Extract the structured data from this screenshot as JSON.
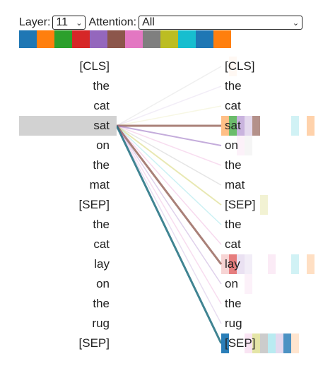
{
  "controls": {
    "layer_label": "Layer:",
    "layer_value": "11",
    "attention_label": "Attention:",
    "attention_value": "All"
  },
  "head_colors": [
    "#1f77b4",
    "#ff7f0e",
    "#2ca02c",
    "#d62728",
    "#9467bd",
    "#8c564b",
    "#e377c2",
    "#7f7f7f",
    "#bcbd22",
    "#17becf",
    "#1f77b4",
    "#ff7f0e"
  ],
  "left_tokens": [
    "[CLS]",
    "the",
    "cat",
    "sat",
    "on",
    "the",
    "mat",
    "[SEP]",
    "the",
    "cat",
    "lay",
    "on",
    "the",
    "rug",
    "[SEP]"
  ],
  "right_tokens": [
    "[CLS]",
    "the",
    "cat",
    "sat",
    "on",
    "the",
    "mat",
    "[SEP]",
    "the",
    "cat",
    "lay",
    "on",
    "the",
    "rug",
    "[SEP]"
  ],
  "selected_left_index": 3,
  "attention_lines": [
    {
      "to": 0,
      "color": "#7f7f7f",
      "opacity": 0.12,
      "width": 1.5
    },
    {
      "to": 1,
      "color": "#9467bd",
      "opacity": 0.12,
      "width": 1.5
    },
    {
      "to": 2,
      "color": "#bcbd22",
      "opacity": 0.12,
      "width": 1.5
    },
    {
      "to": 3,
      "color": "#8c564b",
      "opacity": 0.75,
      "width": 3
    },
    {
      "to": 4,
      "color": "#9467bd",
      "opacity": 0.55,
      "width": 2
    },
    {
      "to": 5,
      "color": "#e377c2",
      "opacity": 0.25,
      "width": 1.5
    },
    {
      "to": 6,
      "color": "#7f7f7f",
      "opacity": 0.2,
      "width": 1.5
    },
    {
      "to": 7,
      "color": "#bcbd22",
      "opacity": 0.35,
      "width": 2
    },
    {
      "to": 8,
      "color": "#17becf",
      "opacity": 0.22,
      "width": 1.5
    },
    {
      "to": 9,
      "color": "#e377c2",
      "opacity": 0.28,
      "width": 1.5
    },
    {
      "to": 10,
      "color": "#8c564b",
      "opacity": 0.75,
      "width": 3
    },
    {
      "to": 11,
      "color": "#9467bd",
      "opacity": 0.3,
      "width": 1.5
    },
    {
      "to": 12,
      "color": "#e377c2",
      "opacity": 0.25,
      "width": 1.5
    },
    {
      "to": 13,
      "color": "#9467bd",
      "opacity": 0.22,
      "width": 1.5
    },
    {
      "to": 14,
      "color": "#1f6f7f",
      "opacity": 0.85,
      "width": 3
    }
  ],
  "heat_cells": [
    {
      "row": 0,
      "head": 1,
      "color": "#ff7f0e",
      "opacity": 0.05
    },
    {
      "row": 3,
      "head": 0,
      "color": "#ff7f0e",
      "opacity": 0.5
    },
    {
      "row": 3,
      "head": 1,
      "color": "#2ca02c",
      "opacity": 0.7
    },
    {
      "row": 3,
      "head": 2,
      "color": "#9467bd",
      "opacity": 0.5
    },
    {
      "row": 3,
      "head": 3,
      "color": "#9467bd",
      "opacity": 0.25
    },
    {
      "row": 3,
      "head": 4,
      "color": "#8c564b",
      "opacity": 0.65
    },
    {
      "row": 3,
      "head": 9,
      "color": "#17becf",
      "opacity": 0.2
    },
    {
      "row": 3,
      "head": 11,
      "color": "#ff7f0e",
      "opacity": 0.35
    },
    {
      "row": 4,
      "head": 2,
      "color": "#e377c2",
      "opacity": 0.1
    },
    {
      "row": 4,
      "head": 3,
      "color": "#7f7f7f",
      "opacity": 0.08
    },
    {
      "row": 7,
      "head": 5,
      "color": "#bcbd22",
      "opacity": 0.2
    },
    {
      "row": 10,
      "head": 0,
      "color": "#d62728",
      "opacity": 0.2
    },
    {
      "row": 10,
      "head": 1,
      "color": "#d62728",
      "opacity": 0.6
    },
    {
      "row": 10,
      "head": 2,
      "color": "#9467bd",
      "opacity": 0.2
    },
    {
      "row": 10,
      "head": 3,
      "color": "#9467bd",
      "opacity": 0.12
    },
    {
      "row": 10,
      "head": 6,
      "color": "#e377c2",
      "opacity": 0.15
    },
    {
      "row": 10,
      "head": 9,
      "color": "#17becf",
      "opacity": 0.2
    },
    {
      "row": 10,
      "head": 11,
      "color": "#ff7f0e",
      "opacity": 0.25
    },
    {
      "row": 11,
      "head": 3,
      "color": "#e377c2",
      "opacity": 0.1
    },
    {
      "row": 14,
      "head": 0,
      "color": "#1f77b4",
      "opacity": 0.95
    },
    {
      "row": 14,
      "head": 3,
      "color": "#e377c2",
      "opacity": 0.2
    },
    {
      "row": 14,
      "head": 4,
      "color": "#bcbd22",
      "opacity": 0.4
    },
    {
      "row": 14,
      "head": 5,
      "color": "#7f7f7f",
      "opacity": 0.4
    },
    {
      "row": 14,
      "head": 6,
      "color": "#17becf",
      "opacity": 0.3
    },
    {
      "row": 14,
      "head": 7,
      "color": "#9467bd",
      "opacity": 0.25
    },
    {
      "row": 14,
      "head": 8,
      "color": "#1f77b4",
      "opacity": 0.8
    },
    {
      "row": 14,
      "head": 9,
      "color": "#ff7f0e",
      "opacity": 0.2
    }
  ]
}
